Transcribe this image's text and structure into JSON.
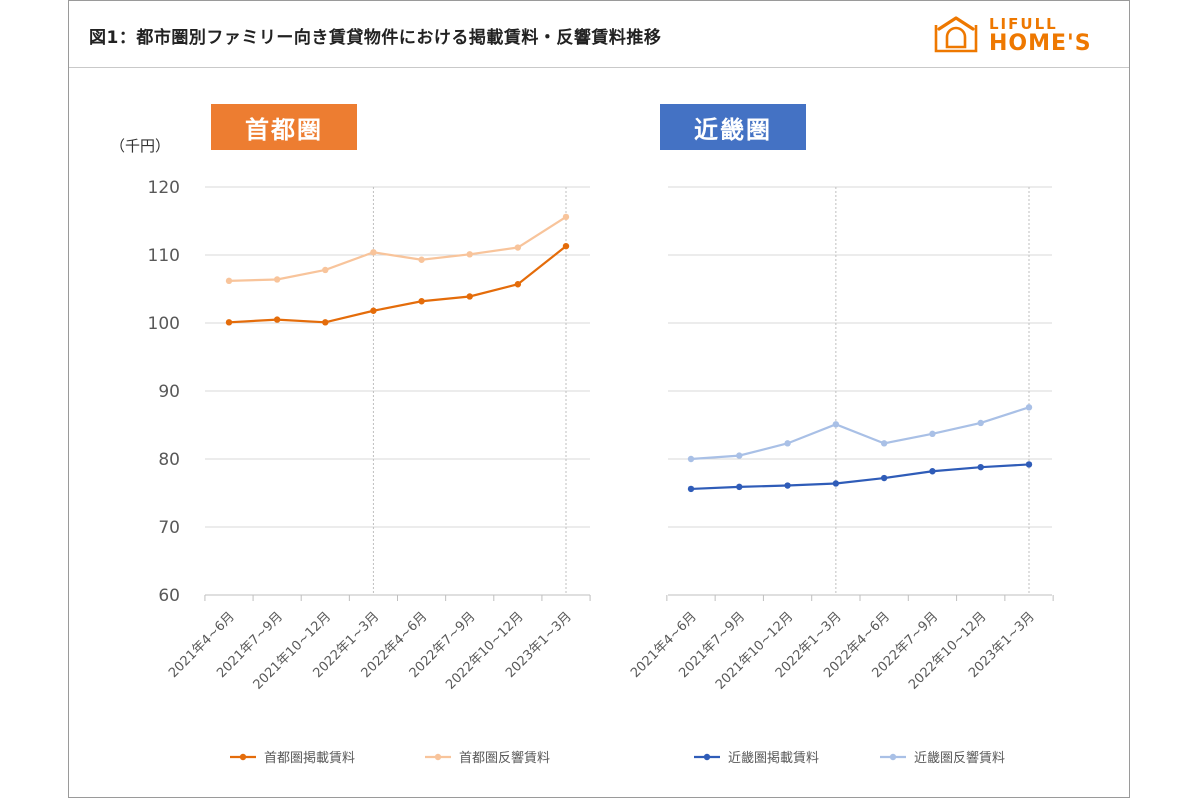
{
  "title": "図1：都市圏別ファミリー向き賃貸物件における掲載賃料・反響賃料推移",
  "logo": {
    "line1": "LIFULL",
    "line2": "HOME'S",
    "icon": "house-icon",
    "color": "#ee7800"
  },
  "chart_data": [
    {
      "type": "line",
      "title": "首都圏",
      "title_color": "#ed7d31",
      "ylabel": "（千円）",
      "ylim": [
        60,
        120
      ],
      "yticks": [
        60,
        70,
        80,
        90,
        100,
        110,
        120
      ],
      "grid": true,
      "legend_position": "bottom",
      "categories": [
        "2021年4~6月",
        "2021年7~9月",
        "2021年10~12月",
        "2022年1~3月",
        "2022年4~6月",
        "2022年7~9月",
        "2022年10~12月",
        "2023年1~3月"
      ],
      "series": [
        {
          "name": "首都圏掲載賃料",
          "color": "#e46c0a",
          "values": [
            100.1,
            100.5,
            100.1,
            101.8,
            103.2,
            103.9,
            105.7,
            111.3
          ]
        },
        {
          "name": "首都圏反響賃料",
          "color": "#f8c49b",
          "values": [
            106.2,
            106.4,
            107.8,
            110.4,
            109.3,
            110.1,
            111.1,
            115.6
          ]
        }
      ]
    },
    {
      "type": "line",
      "title": "近畿圏",
      "title_color": "#4472c4",
      "ylim": [
        60,
        120
      ],
      "grid": true,
      "legend_position": "bottom",
      "categories": [
        "2021年4~6月",
        "2021年7~9月",
        "2021年10~12月",
        "2022年1~3月",
        "2022年4~6月",
        "2022年7~9月",
        "2022年10~12月",
        "2023年1~3月"
      ],
      "series": [
        {
          "name": "近畿圏掲載賃料",
          "color": "#2f5cb8",
          "values": [
            75.6,
            75.9,
            76.1,
            76.4,
            77.2,
            78.2,
            78.8,
            79.2
          ]
        },
        {
          "name": "近畿圏反響賃料",
          "color": "#a9c0e6",
          "values": [
            80.0,
            80.5,
            82.3,
            85.1,
            82.3,
            83.7,
            85.3,
            87.6
          ]
        }
      ]
    }
  ]
}
